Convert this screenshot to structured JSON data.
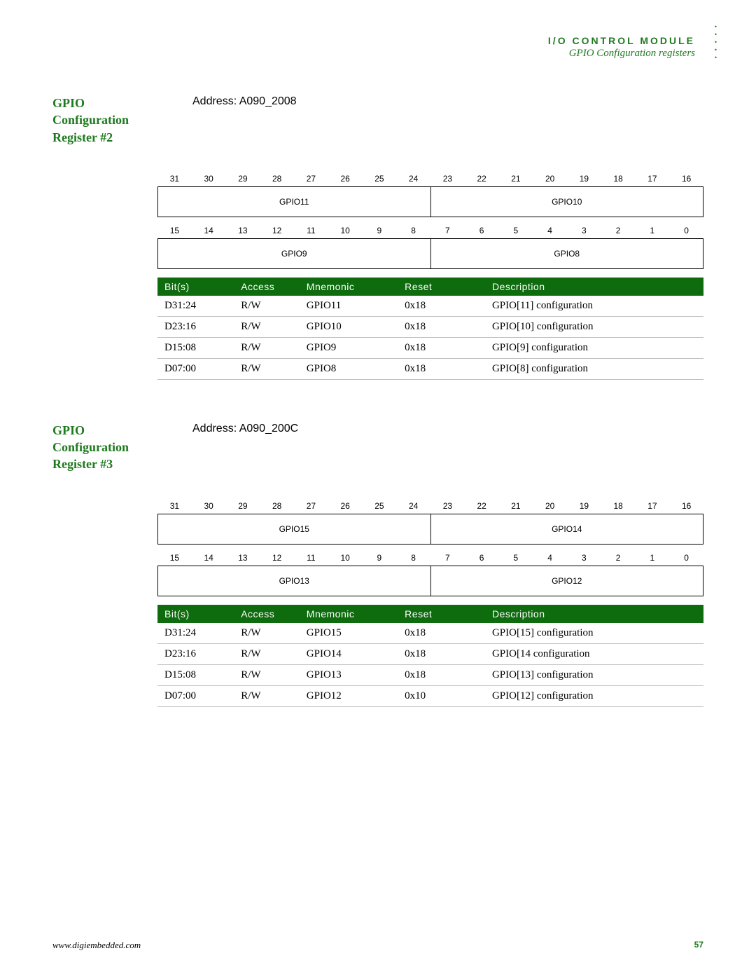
{
  "header": {
    "line1": "I/O CONTROL MODULE",
    "line2": "GPIO Configuration registers"
  },
  "colors": {
    "accent": "#1f7a1f",
    "table_header_bg": "#0e6b0e",
    "table_header_fg": "#ffffff",
    "rule": "#bfbfbf",
    "text": "#000000",
    "bg": "#ffffff"
  },
  "registers": [
    {
      "title_lines": [
        "GPIO",
        "Configuration",
        "Register #2"
      ],
      "address_label": "Address: A090_2008",
      "bitrows": [
        {
          "bits": [
            "31",
            "30",
            "29",
            "28",
            "27",
            "26",
            "25",
            "24",
            "23",
            "22",
            "21",
            "20",
            "19",
            "18",
            "17",
            "16"
          ],
          "fields": [
            {
              "label": "GPIO11",
              "span": 8
            },
            {
              "label": "GPIO10",
              "span": 8
            }
          ]
        },
        {
          "bits": [
            "15",
            "14",
            "13",
            "12",
            "11",
            "10",
            "9",
            "8",
            "7",
            "6",
            "5",
            "4",
            "3",
            "2",
            "1",
            "0"
          ],
          "fields": [
            {
              "label": "GPIO9",
              "span": 8
            },
            {
              "label": "GPIO8",
              "span": 8
            }
          ]
        }
      ],
      "table": {
        "columns": [
          "Bit(s)",
          "Access",
          "Mnemonic",
          "Reset",
          "Description"
        ],
        "rows": [
          [
            "D31:24",
            "R/W",
            "GPIO11",
            "0x18",
            "GPIO[11] configuration"
          ],
          [
            "D23:16",
            "R/W",
            "GPIO10",
            "0x18",
            "GPIO[10] configuration"
          ],
          [
            "D15:08",
            "R/W",
            "GPIO9",
            "0x18",
            "GPIO[9] configuration"
          ],
          [
            "D07:00",
            "R/W",
            "GPIO8",
            "0x18",
            "GPIO[8] configuration"
          ]
        ]
      }
    },
    {
      "title_lines": [
        "GPIO",
        "Configuration",
        "Register #3"
      ],
      "address_label": "Address: A090_200C",
      "bitrows": [
        {
          "bits": [
            "31",
            "30",
            "29",
            "28",
            "27",
            "26",
            "25",
            "24",
            "23",
            "22",
            "21",
            "20",
            "19",
            "18",
            "17",
            "16"
          ],
          "fields": [
            {
              "label": "GPIO15",
              "span": 8
            },
            {
              "label": "GPIO14",
              "span": 8
            }
          ]
        },
        {
          "bits": [
            "15",
            "14",
            "13",
            "12",
            "11",
            "10",
            "9",
            "8",
            "7",
            "6",
            "5",
            "4",
            "3",
            "2",
            "1",
            "0"
          ],
          "fields": [
            {
              "label": "GPIO13",
              "span": 8
            },
            {
              "label": "GPIO12",
              "span": 8
            }
          ]
        }
      ],
      "table": {
        "columns": [
          "Bit(s)",
          "Access",
          "Mnemonic",
          "Reset",
          "Description"
        ],
        "rows": [
          [
            "D31:24",
            "R/W",
            "GPIO15",
            "0x18",
            "GPIO[15] configuration"
          ],
          [
            "D23:16",
            "R/W",
            "GPIO14",
            "0x18",
            "GPIO[14 configuration"
          ],
          [
            "D15:08",
            "R/W",
            "GPIO13",
            "0x18",
            "GPIO[13] configuration"
          ],
          [
            "D07:00",
            "R/W",
            "GPIO12",
            "0x10",
            "GPIO[12] configuration"
          ]
        ]
      }
    }
  ],
  "footer": {
    "url": "www.digiembedded.com",
    "page": "57"
  }
}
